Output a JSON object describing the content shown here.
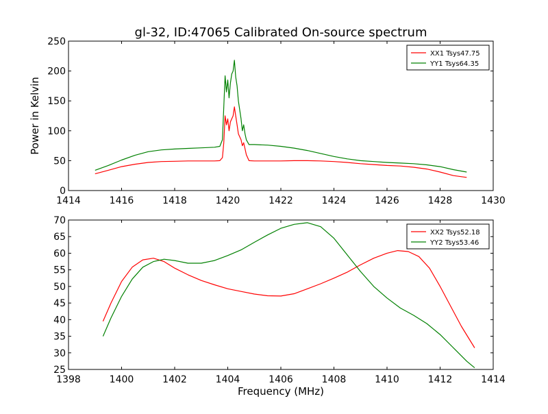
{
  "chart_data": [
    {
      "type": "line",
      "title": "gl-32, ID:47065 Calibrated On-source spectrum",
      "xlabel": "",
      "ylabel": "Power in Kelvin",
      "xlim": [
        1414,
        1430
      ],
      "ylim": [
        0,
        250
      ],
      "xticks": [
        "1414",
        "1416",
        "1418",
        "1420",
        "1422",
        "1424",
        "1426",
        "1428",
        "1430"
      ],
      "yticks": [
        "0",
        "50",
        "100",
        "150",
        "200",
        "250"
      ],
      "legend_position": "top-right",
      "grid": false,
      "series": [
        {
          "name": "XX1 Tsys47.75",
          "color": "#ff0000",
          "x": [
            1415.0,
            1415.5,
            1416.0,
            1416.5,
            1417.0,
            1417.5,
            1418.0,
            1418.5,
            1419.0,
            1419.5,
            1419.7,
            1419.8,
            1419.85,
            1419.9,
            1419.95,
            1420.0,
            1420.05,
            1420.1,
            1420.15,
            1420.2,
            1420.25,
            1420.3,
            1420.35,
            1420.4,
            1420.5,
            1420.55,
            1420.6,
            1420.65,
            1420.7,
            1420.8,
            1421.0,
            1421.5,
            1422.0,
            1422.5,
            1423.0,
            1423.5,
            1424.0,
            1424.5,
            1425.0,
            1425.5,
            1426.0,
            1426.5,
            1427.0,
            1427.5,
            1428.0,
            1428.5,
            1429.0
          ],
          "y": [
            28,
            34,
            40,
            44,
            47,
            48.5,
            49,
            49.5,
            49.5,
            49.5,
            50,
            55,
            80,
            125,
            110,
            120,
            100,
            115,
            120,
            125,
            140,
            125,
            110,
            95,
            85,
            75,
            80,
            70,
            60,
            50,
            49.5,
            49.5,
            49.5,
            50,
            50,
            49.5,
            48.5,
            47,
            45,
            43.5,
            42,
            41,
            39,
            36,
            31,
            25,
            22
          ]
        },
        {
          "name": "YY1 Tsys64.35",
          "color": "#008000",
          "x": [
            1415.0,
            1415.5,
            1416.0,
            1416.5,
            1417.0,
            1417.5,
            1418.0,
            1418.5,
            1419.0,
            1419.5,
            1419.7,
            1419.8,
            1419.85,
            1419.9,
            1419.95,
            1420.0,
            1420.05,
            1420.1,
            1420.15,
            1420.2,
            1420.25,
            1420.3,
            1420.35,
            1420.4,
            1420.5,
            1420.55,
            1420.6,
            1420.65,
            1420.7,
            1420.8,
            1421.0,
            1421.5,
            1422.0,
            1422.5,
            1423.0,
            1423.5,
            1424.0,
            1424.5,
            1425.0,
            1425.5,
            1426.0,
            1426.5,
            1427.0,
            1427.5,
            1428.0,
            1428.5,
            1429.0
          ],
          "y": [
            34,
            42,
            51,
            59,
            65,
            68,
            69.5,
            70.5,
            71.5,
            72.5,
            74,
            85,
            140,
            192,
            165,
            185,
            155,
            180,
            195,
            200,
            218,
            190,
            175,
            150,
            120,
            100,
            110,
            95,
            85,
            77,
            77,
            76,
            74,
            71,
            67,
            62,
            57,
            53,
            50,
            48.5,
            47,
            46,
            45,
            43,
            40,
            35,
            31
          ]
        }
      ]
    },
    {
      "type": "line",
      "title": "",
      "xlabel": "Frequency (MHz)",
      "ylabel": "",
      "xlim": [
        1398,
        1414
      ],
      "ylim": [
        25,
        70
      ],
      "xticks": [
        "1398",
        "1400",
        "1402",
        "1404",
        "1406",
        "1408",
        "1410",
        "1412",
        "1414"
      ],
      "yticks": [
        "25",
        "30",
        "35",
        "40",
        "45",
        "50",
        "55",
        "60",
        "65",
        "70"
      ],
      "legend_position": "top-right",
      "grid": false,
      "series": [
        {
          "name": "XX2 Tsys52.18",
          "color": "#ff0000",
          "x": [
            1399.3,
            1399.6,
            1400.0,
            1400.4,
            1400.8,
            1401.2,
            1401.6,
            1402.0,
            1402.5,
            1403.0,
            1403.5,
            1404.0,
            1404.5,
            1405.0,
            1405.5,
            1406.0,
            1406.5,
            1407.0,
            1407.5,
            1408.0,
            1408.5,
            1409.0,
            1409.5,
            1410.0,
            1410.4,
            1410.8,
            1411.2,
            1411.6,
            1412.0,
            1412.4,
            1412.8,
            1413.3
          ],
          "y": [
            39.5,
            45,
            51.5,
            55.8,
            58,
            58.5,
            57.5,
            55.5,
            53.5,
            51.8,
            50.5,
            49.3,
            48.5,
            47.7,
            47.2,
            47.1,
            47.8,
            49.3,
            50.8,
            52.5,
            54.3,
            56.5,
            58.5,
            60,
            60.8,
            60.5,
            59,
            55.5,
            50,
            44,
            38,
            31.5
          ]
        },
        {
          "name": "YY2 Tsys53.46",
          "color": "#008000",
          "x": [
            1399.3,
            1399.6,
            1400.0,
            1400.4,
            1400.8,
            1401.2,
            1401.6,
            1402.0,
            1402.5,
            1403.0,
            1403.5,
            1404.0,
            1404.5,
            1405.0,
            1405.5,
            1406.0,
            1406.5,
            1407.0,
            1407.5,
            1408.0,
            1408.5,
            1409.0,
            1409.5,
            1410.0,
            1410.5,
            1411.0,
            1411.5,
            1412.0,
            1412.5,
            1413.0,
            1413.3
          ],
          "y": [
            35,
            40.5,
            47,
            52.2,
            55.8,
            57.5,
            58.2,
            57.8,
            57,
            57,
            57.8,
            59.3,
            61,
            63.3,
            65.5,
            67.5,
            68.7,
            69.2,
            68,
            64.5,
            59.5,
            54.5,
            50,
            46.5,
            43.5,
            41.3,
            38.8,
            35.5,
            31.5,
            27.5,
            25.5
          ]
        }
      ]
    }
  ]
}
